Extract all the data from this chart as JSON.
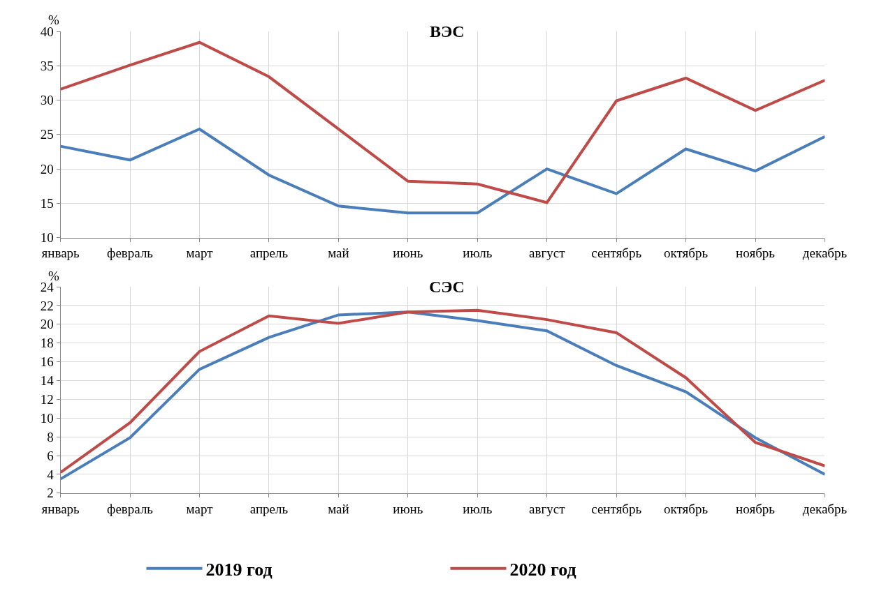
{
  "chart_data": [
    {
      "type": "line",
      "title": "ВЭС",
      "ylabel": "%",
      "categories": [
        "январь",
        "февраль",
        "март",
        "апрель",
        "май",
        "июнь",
        "июль",
        "август",
        "сентябрь",
        "октябрь",
        "ноябрь",
        "декабрь"
      ],
      "series": [
        {
          "color": "#4a7ebb",
          "values": [
            23.3,
            21.3,
            25.8,
            19.1,
            14.6,
            13.6,
            13.6,
            20.0,
            16.4,
            22.9,
            19.7,
            24.7
          ]
        },
        {
          "color": "#be4b48",
          "values": [
            31.6,
            35.1,
            38.4,
            33.4,
            25.8,
            18.2,
            17.8,
            15.1,
            29.9,
            33.2,
            28.5,
            32.9
          ]
        }
      ],
      "ylim": [
        10,
        40
      ],
      "yticks": [
        10,
        15,
        20,
        25,
        30,
        35,
        40
      ],
      "grid": true,
      "marker": "none",
      "line_style": "solid"
    },
    {
      "type": "line",
      "title": "СЭС",
      "ylabel": "%",
      "categories": [
        "январь",
        "февраль",
        "март",
        "апрель",
        "май",
        "июнь",
        "июль",
        "август",
        "сентябрь",
        "октябрь",
        "ноябрь",
        "декабрь"
      ],
      "series": [
        {
          "name": "2019 год",
          "color": "#4a7ebb",
          "values": [
            3.5,
            7.9,
            15.2,
            18.6,
            21.0,
            21.3,
            20.4,
            19.3,
            15.6,
            12.8,
            7.9,
            4.0
          ]
        },
        {
          "name": "2020 год",
          "color": "#be4b48",
          "values": [
            4.2,
            9.5,
            17.1,
            20.9,
            20.1,
            21.3,
            21.5,
            20.5,
            19.1,
            14.3,
            7.4,
            4.9
          ]
        }
      ],
      "ylim": [
        2,
        24
      ],
      "yticks": [
        2,
        4,
        6,
        8,
        10,
        12,
        14,
        16,
        18,
        20,
        22,
        24
      ],
      "grid": true,
      "legend": "bottom",
      "marker": "none",
      "line_style": "solid"
    }
  ]
}
